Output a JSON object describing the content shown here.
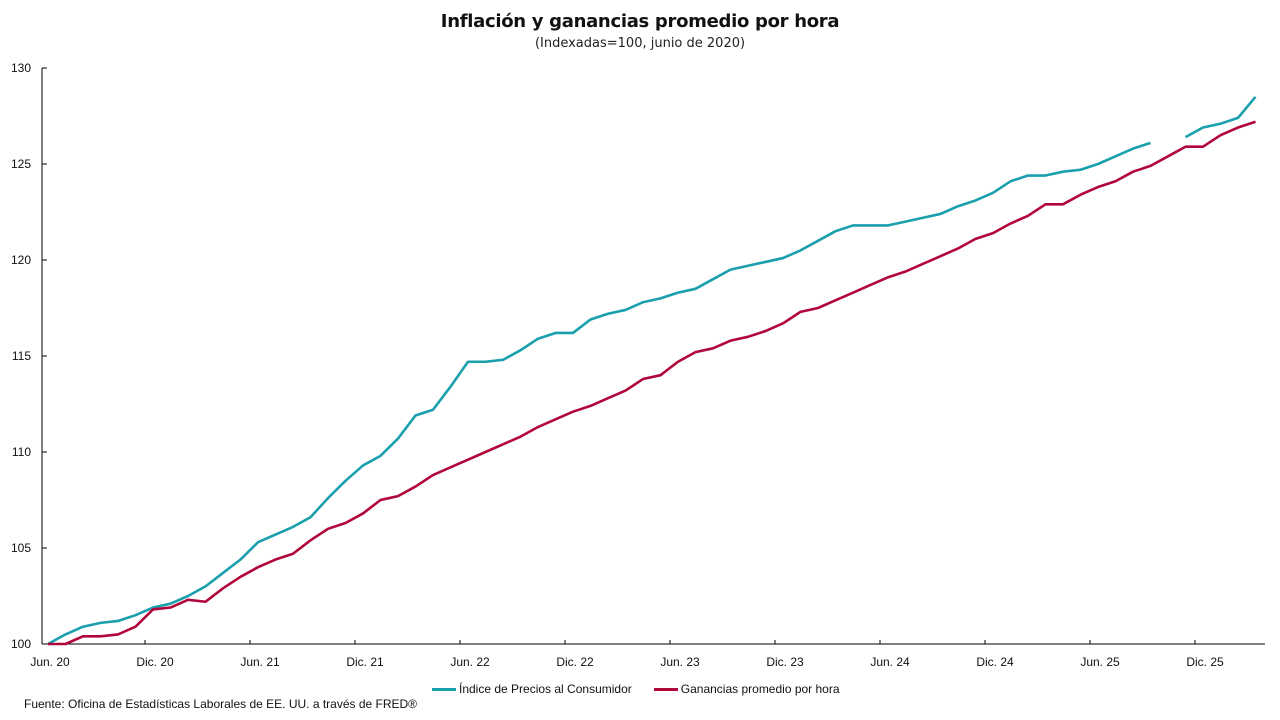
{
  "chart_data": {
    "type": "line",
    "title": "Inflación y ganancias promedio por hora",
    "subtitle": "(Indexadas=100, junio de 2020)",
    "xlabel": "",
    "ylabel": "",
    "ylim": [
      100,
      130
    ],
    "yticks": [
      100,
      105,
      110,
      115,
      120,
      125,
      130
    ],
    "xticks": [
      "Jun. 20",
      "Dic. 20",
      "Jun. 21",
      "Dic. 21",
      "Jun. 22",
      "Dic. 22",
      "Jun. 23",
      "Dic. 23",
      "Jun. 24",
      "Dic. 24",
      "Jun. 25",
      "Dic. 25"
    ],
    "x_start": "2020-06",
    "x_end": "2026-03",
    "frequency": "monthly",
    "grid": false,
    "legend_position": "bottom",
    "source": "Fuente: Oficina de Estadísticas Laborales de EE. UU. a través de FRED®",
    "series": [
      {
        "name": "Índice de Precios al Consumidor",
        "color": "#1a9fad",
        "values": [
          100.0,
          100.5,
          100.9,
          101.1,
          101.2,
          101.5,
          101.9,
          102.1,
          102.5,
          103.0,
          103.7,
          104.4,
          105.3,
          105.7,
          106.1,
          106.6,
          107.6,
          108.5,
          109.3,
          109.8,
          110.7,
          111.9,
          112.2,
          113.4,
          114.7,
          114.7,
          114.8,
          115.3,
          115.9,
          116.2,
          116.2,
          116.9,
          117.2,
          117.4,
          117.8,
          118.0,
          118.3,
          118.5,
          119.0,
          119.5,
          119.7,
          119.9,
          120.1,
          120.5,
          121.0,
          121.5,
          121.8,
          121.8,
          121.8,
          122.0,
          122.2,
          122.4,
          122.8,
          123.1,
          123.5,
          124.1,
          124.4,
          124.4,
          124.6,
          124.7,
          125.0,
          125.4,
          125.8,
          126.1,
          null,
          126.4,
          126.9,
          127.1,
          127.4,
          128.5
        ]
      },
      {
        "name": "Ganancias promedio por hora",
        "color": "#b1063a",
        "values": [
          100.0,
          100.0,
          100.4,
          100.4,
          100.5,
          100.9,
          101.8,
          101.9,
          102.3,
          102.2,
          102.9,
          103.5,
          104.0,
          104.4,
          104.7,
          105.4,
          106.0,
          106.3,
          106.8,
          107.5,
          107.7,
          108.2,
          108.8,
          109.2,
          109.6,
          110.0,
          110.4,
          110.8,
          111.3,
          111.7,
          112.1,
          112.4,
          112.8,
          113.2,
          113.8,
          114.0,
          114.7,
          115.2,
          115.4,
          115.8,
          116.0,
          116.3,
          116.7,
          117.3,
          117.5,
          117.9,
          118.3,
          118.7,
          119.1,
          119.4,
          119.8,
          120.2,
          120.6,
          121.1,
          121.4,
          121.9,
          122.3,
          122.9,
          122.9,
          123.4,
          123.8,
          124.1,
          124.6,
          124.9,
          125.4,
          125.9,
          125.9,
          126.5,
          126.9,
          127.2
        ]
      }
    ]
  }
}
